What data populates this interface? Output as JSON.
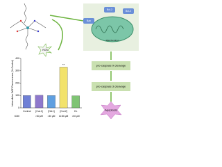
{
  "chart_data": {
    "type": "bar",
    "ylabel": "Intracellular DCF Fluorescence (% Control)",
    "categories": [
      "Control",
      "[CuL1]",
      "[NiL1]",
      "[CuL2]",
      "HL"
    ],
    "values": [
      100,
      102,
      100,
      330,
      98
    ],
    "colors": [
      "#6f80d6",
      "#8e78cc",
      "#5f9fe0",
      "#f2e26c",
      "#7fc474"
    ],
    "ylim": [
      0,
      400
    ],
    "yticks": [
      0,
      100,
      200,
      300,
      400
    ],
    "annotation": "**",
    "ic50_label": "IC50",
    "ic50_values": [
      ">40 μM",
      ">40 μM",
      "12.86 μM",
      ">40 μM"
    ]
  },
  "diagram": {
    "ros": "ROS",
    "mitochondrion": "Mitochondrion",
    "proteins": [
      "Bcl-2",
      "Bax",
      "Bcl-2"
    ],
    "steps": [
      "pro-caspase 9 cleavage",
      "pro-caspase 3 cleavage"
    ],
    "outcome": "Apoptosis"
  }
}
